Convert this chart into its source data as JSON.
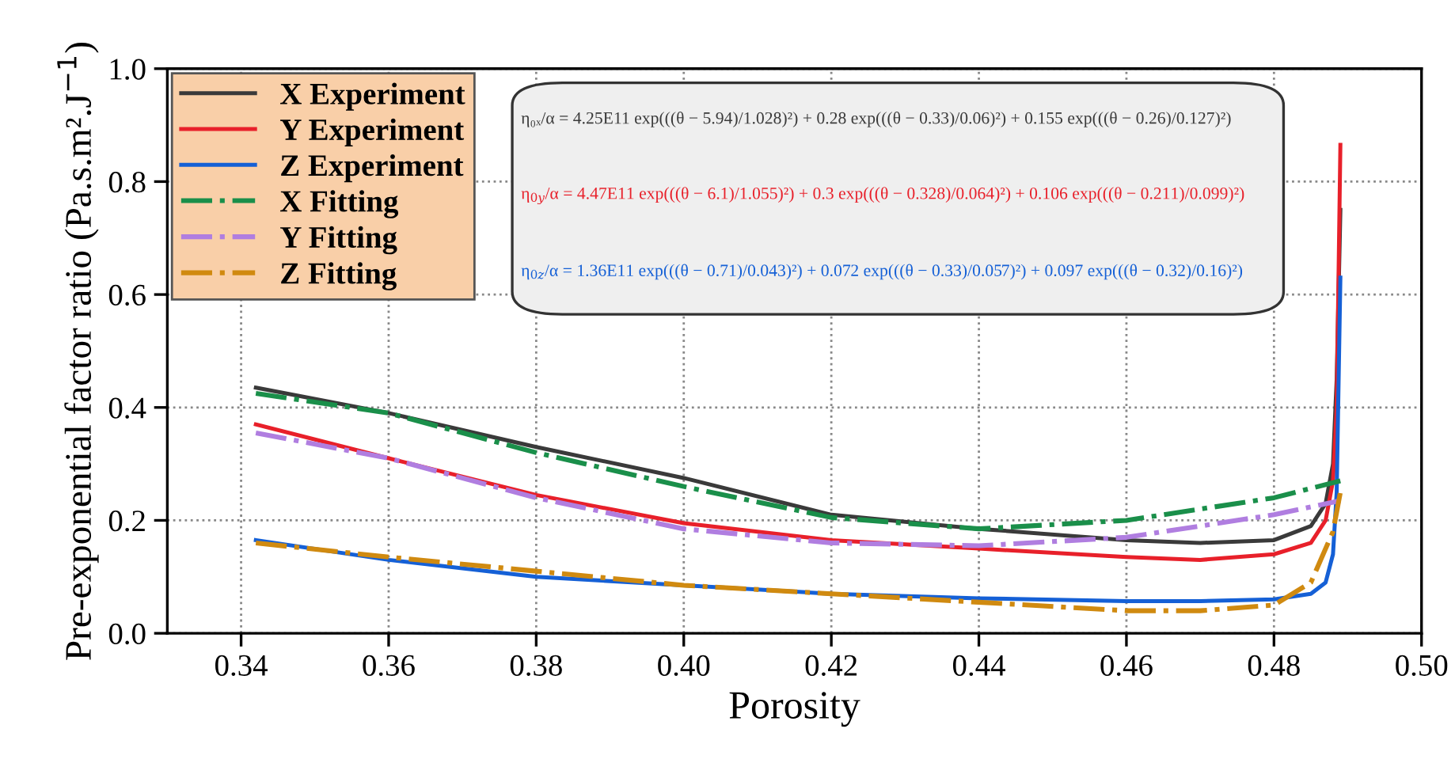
{
  "chart_data": {
    "type": "line",
    "xlabel": "Porosity",
    "ylabel": "Pre-exponential factor ratio (Pa.s.m².J$^{−1}$)",
    "xlim": [
      0.33,
      0.5
    ],
    "ylim": [
      0,
      1.0
    ],
    "xticks": [
      0.34,
      0.36,
      0.38,
      {
        "value": 0.4,
        "label": "0.40"
      },
      0.42,
      0.44,
      0.46,
      0.48,
      {
        "value": 0.5,
        "label": "0.50"
      }
    ],
    "yticks": [
      {
        "value": 0,
        "label": "0.0"
      },
      0.2,
      0.4,
      0.6,
      0.8,
      {
        "value": 1.0,
        "label": "1.0"
      }
    ],
    "grid": true,
    "legend": "top left",
    "marker": "none",
    "series": [
      {
        "name": "X Experiment",
        "color": "#3a3a3a",
        "line_style": "solid",
        "x": [
          0.342,
          0.36,
          0.38,
          0.4,
          0.42,
          0.44,
          0.46,
          0.47,
          0.48,
          0.485,
          0.487,
          0.488,
          0.4885,
          0.489
        ],
        "values": [
          0.435,
          0.39,
          0.33,
          0.275,
          0.21,
          0.185,
          0.165,
          0.16,
          0.165,
          0.19,
          0.23,
          0.3,
          0.45,
          0.75
        ]
      },
      {
        "name": "Y Experiment",
        "color": "#e8202a",
        "line_style": "solid",
        "x": [
          0.342,
          0.36,
          0.38,
          0.4,
          0.42,
          0.44,
          0.46,
          0.47,
          0.48,
          0.485,
          0.487,
          0.488,
          0.4885,
          0.489
        ],
        "values": [
          0.37,
          0.31,
          0.245,
          0.195,
          0.165,
          0.15,
          0.135,
          0.13,
          0.14,
          0.16,
          0.2,
          0.27,
          0.4,
          0.865
        ]
      },
      {
        "name": "Z Experiment",
        "color": "#1560d6",
        "line_style": "solid",
        "x": [
          0.342,
          0.36,
          0.38,
          0.4,
          0.42,
          0.44,
          0.46,
          0.47,
          0.48,
          0.485,
          0.487,
          0.488,
          0.4885,
          0.489
        ],
        "values": [
          0.165,
          0.13,
          0.1,
          0.085,
          0.07,
          0.062,
          0.057,
          0.057,
          0.06,
          0.07,
          0.09,
          0.14,
          0.25,
          0.63
        ]
      },
      {
        "name": "X Fitting",
        "color": "#1a8f4a",
        "line_style": "dashdot",
        "x": [
          0.342,
          0.36,
          0.38,
          0.4,
          0.42,
          0.44,
          0.46,
          0.48,
          0.489
        ],
        "values": [
          0.425,
          0.39,
          0.32,
          0.26,
          0.205,
          0.185,
          0.2,
          0.24,
          0.27
        ]
      },
      {
        "name": "Y Fitting",
        "color": "#b07ee0",
        "line_style": "dashdot",
        "x": [
          0.342,
          0.36,
          0.38,
          0.4,
          0.42,
          0.44,
          0.46,
          0.48,
          0.489
        ],
        "values": [
          0.355,
          0.31,
          0.24,
          0.185,
          0.16,
          0.155,
          0.17,
          0.21,
          0.235
        ]
      },
      {
        "name": "Z Fitting",
        "color": "#d08a10",
        "line_style": "dashdot",
        "x": [
          0.342,
          0.36,
          0.38,
          0.4,
          0.42,
          0.44,
          0.46,
          0.47,
          0.48,
          0.485,
          0.488,
          0.489
        ],
        "values": [
          0.16,
          0.135,
          0.11,
          0.085,
          0.07,
          0.055,
          0.04,
          0.04,
          0.05,
          0.09,
          0.18,
          0.25
        ]
      }
    ],
    "annotations": [
      "η₀ₓ/α = 4.25E11 exp(((θ − 5.94)/1.028)²) + 0.28 exp(((θ − 0.33)/0.06)²) + 0.155 exp(((θ − 0.26)/0.127)²)",
      "η$_{0y}$/α = 4.47E11 exp(((θ − 6.1)/1.055)²) + 0.3 exp(((θ − 0.328)/0.064)²) + 0.106 exp(((θ − 0.211)/0.099)²)",
      "η$_{0z}$/α = 1.36E11 exp(((θ − 0.71)/0.043)²) + 0.072 exp(((θ − 0.33)/0.057)²) + 0.097 exp(((θ − 0.32)/0.16)²)"
    ]
  }
}
